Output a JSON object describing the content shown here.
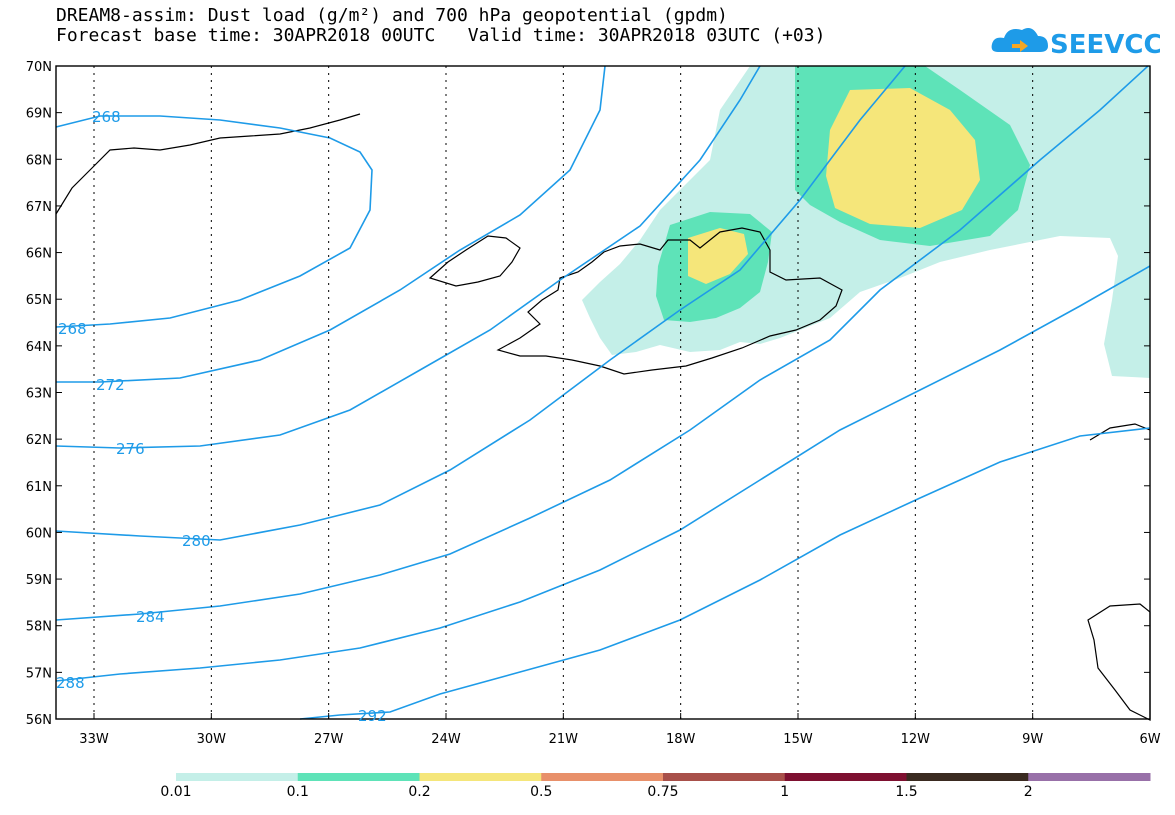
{
  "header": {
    "title_line1": "DREAM8-assim: Dust load (g/m²) and 700 hPa geopotential (gpdm)",
    "title_line2": "Forecast base time: 30APR2018 00UTC   Valid time: 30APR2018 03UTC (+03)",
    "logo_text": "SEEVCCC"
  },
  "map": {
    "lat_labels": [
      "70N",
      "69N",
      "68N",
      "67N",
      "66N",
      "65N",
      "64N",
      "63N",
      "62N",
      "61N",
      "60N",
      "59N",
      "58N",
      "57N",
      "56N"
    ],
    "lon_labels": [
      "33W",
      "30W",
      "27W",
      "24W",
      "21W",
      "18W",
      "15W",
      "12W",
      "9W",
      "6W"
    ],
    "contour_labels": [
      "268",
      "268",
      "272",
      "276",
      "280",
      "284",
      "288",
      "292"
    ],
    "colors": {
      "contour": "#1e9be8",
      "coast": "#000000"
    }
  },
  "colorbar": {
    "labels": [
      "0.01",
      "0.1",
      "0.2",
      "0.5",
      "0.75",
      "1",
      "1.5",
      "2"
    ],
    "colors": [
      "#c4efe8",
      "#5ee3b8",
      "#f5e67a",
      "#e8906a",
      "#a8504a",
      "#7e1030",
      "#3a2a20",
      "#9870a8"
    ]
  }
}
